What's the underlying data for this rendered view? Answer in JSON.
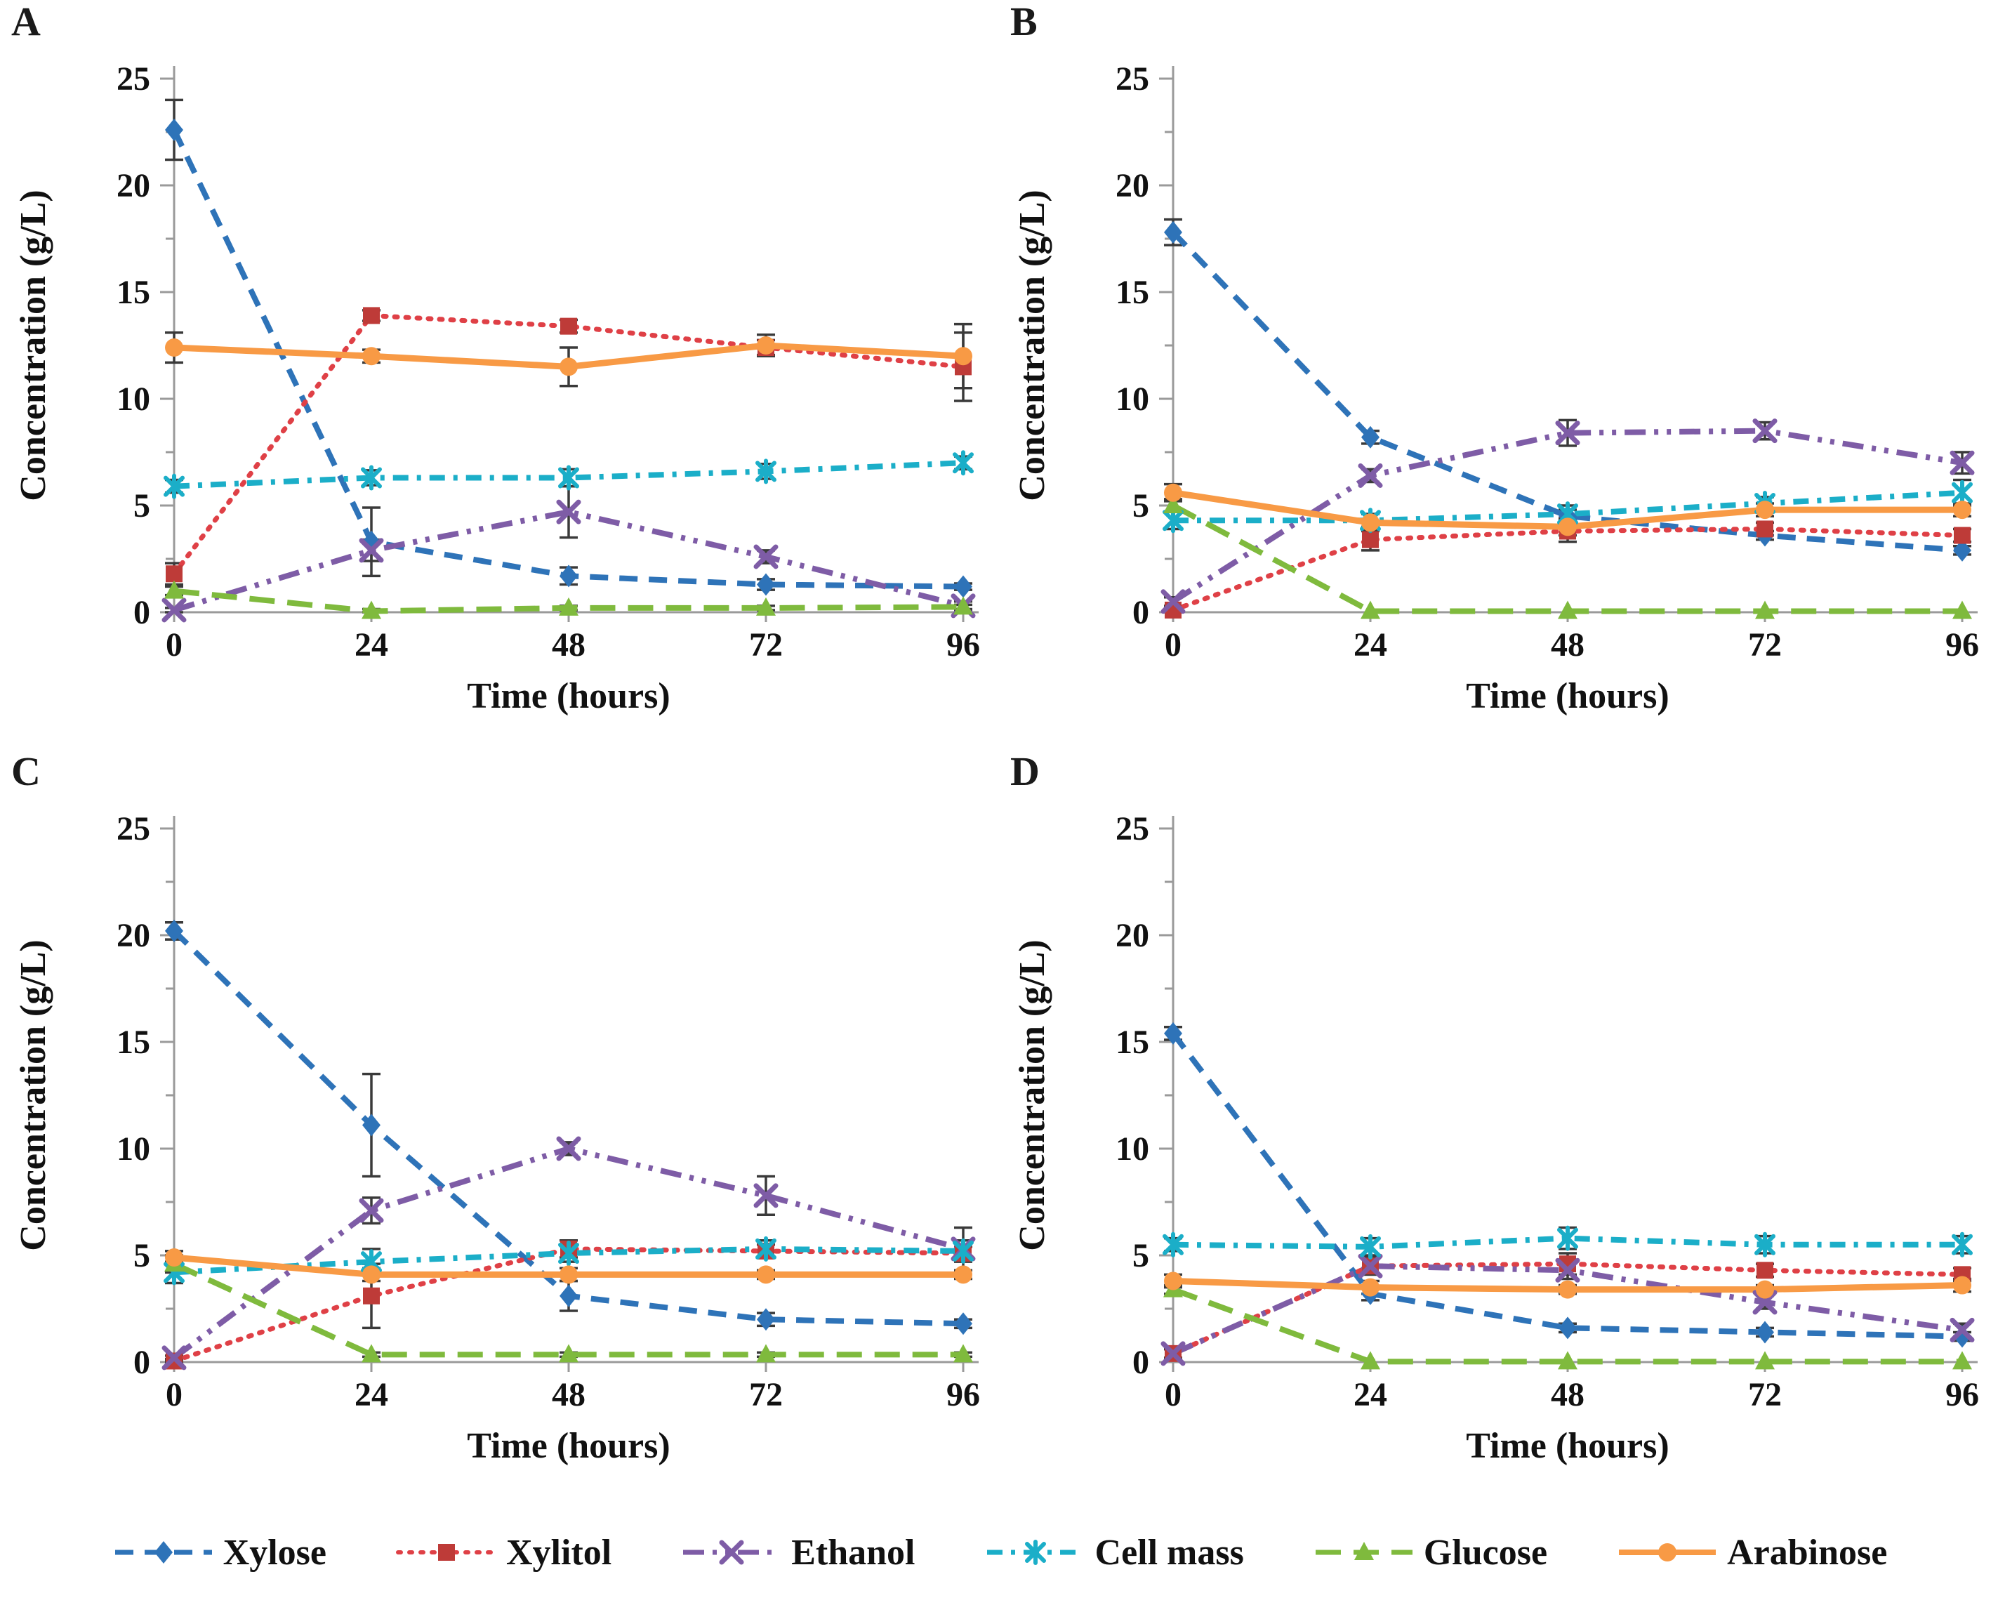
{
  "legend": {
    "entries": [
      {
        "key": "xylose",
        "label": "Xylose"
      },
      {
        "key": "xylitol",
        "label": "Xylitol"
      },
      {
        "key": "ethanol",
        "label": "Ethanol"
      },
      {
        "key": "cellmass",
        "label": "Cell mass"
      },
      {
        "key": "glucose",
        "label": "Glucose"
      },
      {
        "key": "arabinose",
        "label": "Arabinose"
      }
    ]
  },
  "series_styles": {
    "xylose": {
      "color": "#2E73B8",
      "marker": "diamond",
      "line": "dash"
    },
    "xylitol": {
      "color": "#DF4046",
      "marker_color": "#BE3B38",
      "marker": "square",
      "line": "dot"
    },
    "ethanol": {
      "color": "#7E5CA6",
      "marker": "xcross",
      "line": "dashdotdot"
    },
    "cellmass": {
      "color": "#1BAEC8",
      "marker": "star",
      "line": "dashdot"
    },
    "glucose": {
      "color": "#7FBA3D",
      "marker": "triangle",
      "line": "longdash"
    },
    "arabinose": {
      "color": "#F89A45",
      "marker": "circle",
      "line": "solid"
    }
  },
  "chart_data": [
    {
      "panel_label": "A",
      "type": "line",
      "xlabel": "Time (hours)",
      "ylabel": "Concentration (g/L)",
      "x": [
        0,
        24,
        48,
        72,
        96
      ],
      "ylim": [
        0,
        25
      ],
      "yticks": [
        0,
        5,
        10,
        15,
        20,
        25
      ],
      "ytick_minor_step": 2.5,
      "legend_position": "shared-bottom",
      "grid": false,
      "series": [
        {
          "key": "xylose",
          "name": "Xylose",
          "values": [
            22.6,
            3.3,
            1.7,
            1.3,
            1.2
          ],
          "errors": [
            1.4,
            1.6,
            0.4,
            0.25,
            0.15
          ]
        },
        {
          "key": "xylitol",
          "name": "Xylitol",
          "values": [
            1.8,
            13.9,
            13.4,
            12.4,
            11.5
          ],
          "errors": [
            0.5,
            0.25,
            0.3,
            0.35,
            1.6
          ]
        },
        {
          "key": "ethanol",
          "name": "Ethanol",
          "values": [
            0.1,
            2.9,
            4.7,
            2.6,
            0.3
          ],
          "errors": [
            0.1,
            0.5,
            1.2,
            0.3,
            0.2
          ]
        },
        {
          "key": "cellmass",
          "name": "Cell mass",
          "values": [
            5.9,
            6.3,
            6.3,
            6.6,
            7.0
          ],
          "errors": [
            0.3,
            0.35,
            0.4,
            0.35,
            0.3
          ]
        },
        {
          "key": "glucose",
          "name": "Glucose",
          "values": [
            1.0,
            0.05,
            0.2,
            0.2,
            0.25
          ],
          "errors": [
            0.2,
            0.1,
            0.1,
            0.1,
            0.1
          ]
        },
        {
          "key": "arabinose",
          "name": "Arabinose",
          "values": [
            12.4,
            12.0,
            11.5,
            12.5,
            12.0
          ],
          "errors": [
            0.7,
            0.3,
            0.9,
            0.5,
            1.5
          ]
        }
      ]
    },
    {
      "panel_label": "B",
      "type": "line",
      "xlabel": "Time (hours)",
      "ylabel": "Concentration (g/L)",
      "x": [
        0,
        24,
        48,
        72,
        96
      ],
      "ylim": [
        0,
        25
      ],
      "yticks": [
        0,
        5,
        10,
        15,
        20,
        25
      ],
      "ytick_minor_step": 2.5,
      "legend_position": "shared-bottom",
      "grid": false,
      "series": [
        {
          "key": "xylose",
          "name": "Xylose",
          "values": [
            17.8,
            8.2,
            4.5,
            3.6,
            2.9
          ],
          "errors": [
            0.6,
            0.3,
            0.3,
            0.2,
            0.2
          ]
        },
        {
          "key": "xylitol",
          "name": "Xylitol",
          "values": [
            0.1,
            3.4,
            3.8,
            3.9,
            3.6
          ],
          "errors": [
            0.1,
            0.5,
            0.5,
            0.3,
            0.3
          ]
        },
        {
          "key": "ethanol",
          "name": "Ethanol",
          "values": [
            0.5,
            6.4,
            8.4,
            8.5,
            7.0
          ],
          "errors": [
            0.2,
            0.3,
            0.6,
            0.4,
            0.5
          ]
        },
        {
          "key": "cellmass",
          "name": "Cell mass",
          "values": [
            4.3,
            4.3,
            4.6,
            5.1,
            5.6
          ],
          "errors": [
            0.4,
            0.3,
            0.4,
            0.3,
            0.6
          ]
        },
        {
          "key": "glucose",
          "name": "Glucose",
          "values": [
            5.0,
            0.05,
            0.05,
            0.05,
            0.05
          ],
          "errors": [
            0.3,
            0.05,
            0.05,
            0.05,
            0.05
          ]
        },
        {
          "key": "arabinose",
          "name": "Arabinose",
          "values": [
            5.6,
            4.2,
            4.0,
            4.8,
            4.8
          ],
          "errors": [
            0.4,
            0.4,
            0.4,
            0.3,
            0.3
          ]
        }
      ]
    },
    {
      "panel_label": "C",
      "type": "line",
      "xlabel": "Time (hours)",
      "ylabel": "Concentration (g/L)",
      "x": [
        0,
        24,
        48,
        72,
        96
      ],
      "ylim": [
        0,
        25
      ],
      "yticks": [
        0,
        5,
        10,
        15,
        20,
        25
      ],
      "ytick_minor_step": 2.5,
      "legend_position": "shared-bottom",
      "grid": false,
      "series": [
        {
          "key": "xylose",
          "name": "Xylose",
          "values": [
            20.2,
            11.1,
            3.1,
            2.0,
            1.8
          ],
          "errors": [
            0.4,
            2.4,
            0.7,
            0.3,
            0.2
          ]
        },
        {
          "key": "xylitol",
          "name": "Xylitol",
          "values": [
            0.05,
            3.1,
            5.3,
            5.2,
            5.1
          ],
          "errors": [
            0.1,
            1.5,
            0.4,
            0.3,
            0.3
          ]
        },
        {
          "key": "ethanol",
          "name": "Ethanol",
          "values": [
            0.2,
            7.1,
            10.0,
            7.8,
            5.3
          ],
          "errors": [
            0.1,
            0.6,
            0.3,
            0.9,
            1.0
          ]
        },
        {
          "key": "cellmass",
          "name": "Cell mass",
          "values": [
            4.2,
            4.7,
            5.1,
            5.3,
            5.2
          ],
          "errors": [
            0.5,
            0.6,
            0.4,
            0.4,
            0.5
          ]
        },
        {
          "key": "glucose",
          "name": "Glucose",
          "values": [
            4.6,
            0.35,
            0.35,
            0.35,
            0.35
          ],
          "errors": [
            0.4,
            0.1,
            0.1,
            0.1,
            0.1
          ]
        },
        {
          "key": "arabinose",
          "name": "Arabinose",
          "values": [
            4.9,
            4.1,
            4.1,
            4.1,
            4.1
          ],
          "errors": [
            0.3,
            0.3,
            0.3,
            0.2,
            0.2
          ]
        }
      ]
    },
    {
      "panel_label": "D",
      "type": "line",
      "xlabel": "Time (hours)",
      "ylabel": "Concentration (g/L)",
      "x": [
        0,
        24,
        48,
        72,
        96
      ],
      "ylim": [
        0,
        25
      ],
      "yticks": [
        0,
        5,
        10,
        15,
        20,
        25
      ],
      "ytick_minor_step": 2.5,
      "legend_position": "shared-bottom",
      "grid": false,
      "series": [
        {
          "key": "xylose",
          "name": "Xylose",
          "values": [
            15.4,
            3.2,
            1.6,
            1.4,
            1.2
          ],
          "errors": [
            0.3,
            0.3,
            0.2,
            0.2,
            0.2
          ]
        },
        {
          "key": "xylitol",
          "name": "Xylitol",
          "values": [
            0.4,
            4.5,
            4.6,
            4.3,
            4.1
          ],
          "errors": [
            0.2,
            0.4,
            0.5,
            0.3,
            0.3
          ]
        },
        {
          "key": "ethanol",
          "name": "Ethanol",
          "values": [
            0.4,
            4.5,
            4.3,
            2.8,
            1.5
          ],
          "errors": [
            0.2,
            0.4,
            0.4,
            0.3,
            0.3
          ]
        },
        {
          "key": "cellmass",
          "name": "Cell mass",
          "values": [
            5.5,
            5.4,
            5.8,
            5.5,
            5.5
          ],
          "errors": [
            0.3,
            0.4,
            0.5,
            0.4,
            0.4
          ]
        },
        {
          "key": "glucose",
          "name": "Glucose",
          "values": [
            3.4,
            0.02,
            0.02,
            0.02,
            0.02
          ],
          "errors": [
            0.2,
            0.05,
            0.05,
            0.05,
            0.05
          ]
        },
        {
          "key": "arabinose",
          "name": "Arabinose",
          "values": [
            3.8,
            3.5,
            3.4,
            3.4,
            3.6
          ],
          "errors": [
            0.3,
            0.3,
            0.2,
            0.2,
            0.3
          ]
        }
      ]
    }
  ]
}
